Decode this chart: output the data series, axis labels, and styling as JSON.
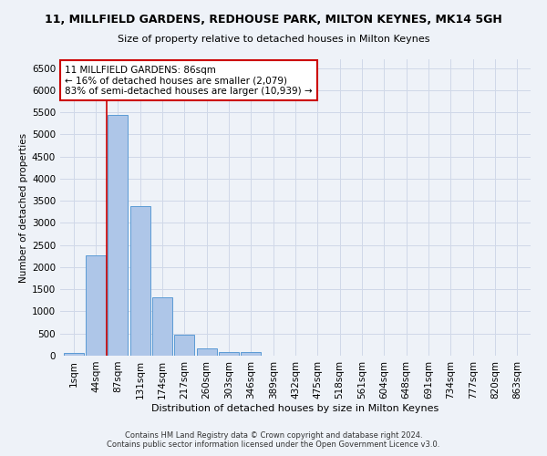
{
  "title": "11, MILLFIELD GARDENS, REDHOUSE PARK, MILTON KEYNES, MK14 5GH",
  "subtitle": "Size of property relative to detached houses in Milton Keynes",
  "xlabel": "Distribution of detached houses by size in Milton Keynes",
  "ylabel": "Number of detached properties",
  "footer_line1": "Contains HM Land Registry data © Crown copyright and database right 2024.",
  "footer_line2": "Contains public sector information licensed under the Open Government Licence v3.0.",
  "annotation_title": "11 MILLFIELD GARDENS: 86sqm",
  "annotation_line1": "← 16% of detached houses are smaller (2,079)",
  "annotation_line2": "83% of semi-detached houses are larger (10,939) →",
  "bar_labels": [
    "1sqm",
    "44sqm",
    "87sqm",
    "131sqm",
    "174sqm",
    "217sqm",
    "260sqm",
    "303sqm",
    "346sqm",
    "389sqm",
    "432sqm",
    "475sqm",
    "518sqm",
    "561sqm",
    "604sqm",
    "648sqm",
    "691sqm",
    "734sqm",
    "777sqm",
    "820sqm",
    "863sqm"
  ],
  "bar_values": [
    70,
    2270,
    5450,
    3380,
    1310,
    480,
    165,
    80,
    75,
    0,
    0,
    0,
    0,
    0,
    0,
    0,
    0,
    0,
    0,
    0,
    0
  ],
  "bar_color": "#aec6e8",
  "bar_edge_color": "#5b9bd5",
  "grid_color": "#d0d8e8",
  "background_color": "#eef2f8",
  "annotation_box_color": "#ffffff",
  "annotation_box_edge": "#cc0000",
  "ylim": [
    0,
    6700
  ],
  "yticks": [
    0,
    500,
    1000,
    1500,
    2000,
    2500,
    3000,
    3500,
    4000,
    4500,
    5000,
    5500,
    6000,
    6500
  ]
}
